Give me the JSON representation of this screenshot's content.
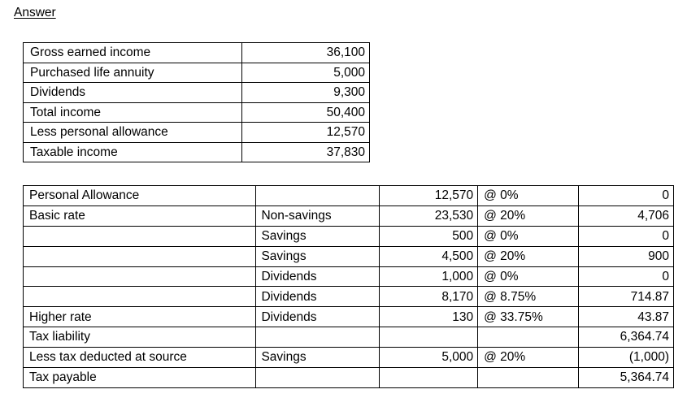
{
  "page": {
    "title": "Answer"
  },
  "income_table": {
    "rows": [
      {
        "label": "Gross earned income",
        "value": "36,100"
      },
      {
        "label": "Purchased life annuity",
        "value": "5,000"
      },
      {
        "label": "Dividends",
        "value": "9,300"
      },
      {
        "label": "Total income",
        "value": "50,400"
      },
      {
        "label": "Less personal allowance",
        "value": "12,570"
      },
      {
        "label": "Taxable income",
        "value": "37,830"
      }
    ]
  },
  "tax_table": {
    "rows": [
      {
        "band": "Personal Allowance",
        "category": "",
        "amount": "12,570",
        "rate": "@ 0%",
        "tax": "0"
      },
      {
        "band": "Basic rate",
        "category": "Non-savings",
        "amount": "23,530",
        "rate": "@ 20%",
        "tax": "4,706"
      },
      {
        "band": "",
        "category": "Savings",
        "amount": "500",
        "rate": "@ 0%",
        "tax": "0"
      },
      {
        "band": "",
        "category": "Savings",
        "amount": "4,500",
        "rate": "@ 20%",
        "tax": "900"
      },
      {
        "band": "",
        "category": "Dividends",
        "amount": "1,000",
        "rate": "@ 0%",
        "tax": "0"
      },
      {
        "band": "",
        "category": "Dividends",
        "amount": "8,170",
        "rate": "@ 8.75%",
        "tax": "714.87"
      },
      {
        "band": "Higher rate",
        "category": "Dividends",
        "amount": "130",
        "rate": "@ 33.75%",
        "tax": "43.87"
      },
      {
        "band": "Tax liability",
        "category": "",
        "amount": "",
        "rate": "",
        "tax": "6,364.74"
      },
      {
        "band": "Less tax deducted at source",
        "category": "Savings",
        "amount": "5,000",
        "rate": "@ 20%",
        "tax": "(1,000)"
      },
      {
        "band": "Tax payable",
        "category": "",
        "amount": "",
        "rate": "",
        "tax": "5,364.74"
      }
    ]
  }
}
